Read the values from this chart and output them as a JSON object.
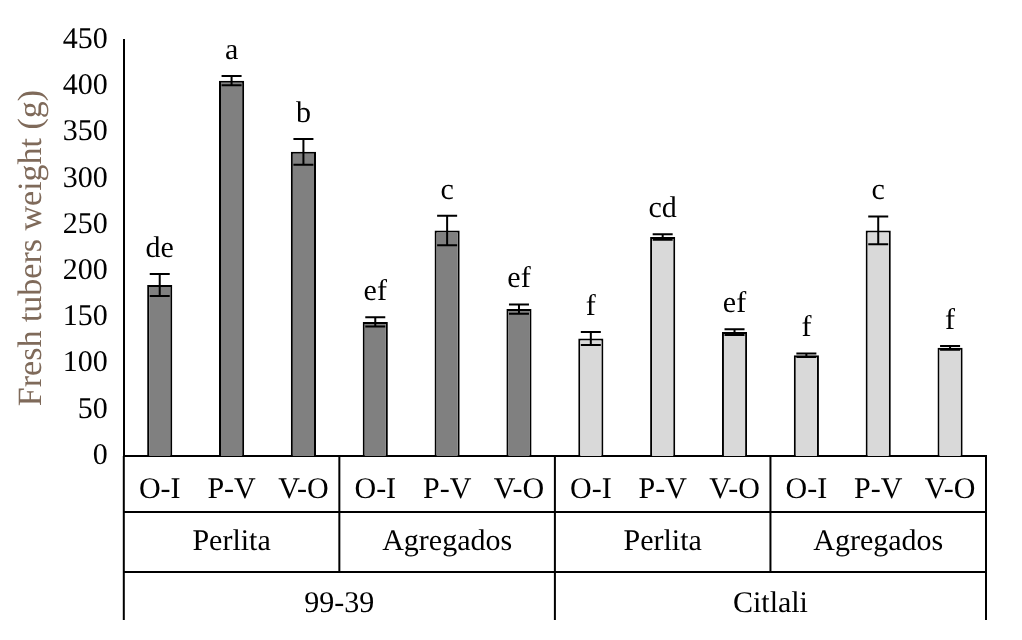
{
  "chart_data": {
    "type": "bar",
    "ylabel": "Fresh tubers weight (g)",
    "categories": [
      "O-I",
      "P-V",
      "V-O",
      "O-I",
      "P-V",
      "V-O",
      "O-I",
      "P-V",
      "V-O",
      "O-I",
      "P-V",
      "V-O"
    ],
    "values": [
      185,
      406,
      329,
      145,
      244,
      159,
      127,
      237,
      134,
      109,
      244,
      117
    ],
    "errors": [
      12,
      5,
      14,
      5,
      16,
      5,
      7,
      3,
      3,
      2,
      15,
      2
    ],
    "value_labels": [
      "de",
      "a",
      "b",
      "ef",
      "c",
      "ef",
      "f",
      "cd",
      "ef",
      "f",
      "c",
      "f"
    ],
    "colors": [
      "#808080",
      "#808080",
      "#808080",
      "#808080",
      "#808080",
      "#808080",
      "#d9d9d9",
      "#d9d9d9",
      "#d9d9d9",
      "#d9d9d9",
      "#d9d9d9",
      "#d9d9d9"
    ],
    "annotations": [
      "Perlita",
      "Agregados",
      "Perlita",
      "Agregados",
      "99-39",
      "Citlali"
    ],
    "ylim": [
      0,
      450
    ],
    "yticks": [
      0,
      50,
      100,
      150,
      200,
      250,
      300,
      350,
      400,
      450
    ],
    "grid": false,
    "legend": false
  }
}
